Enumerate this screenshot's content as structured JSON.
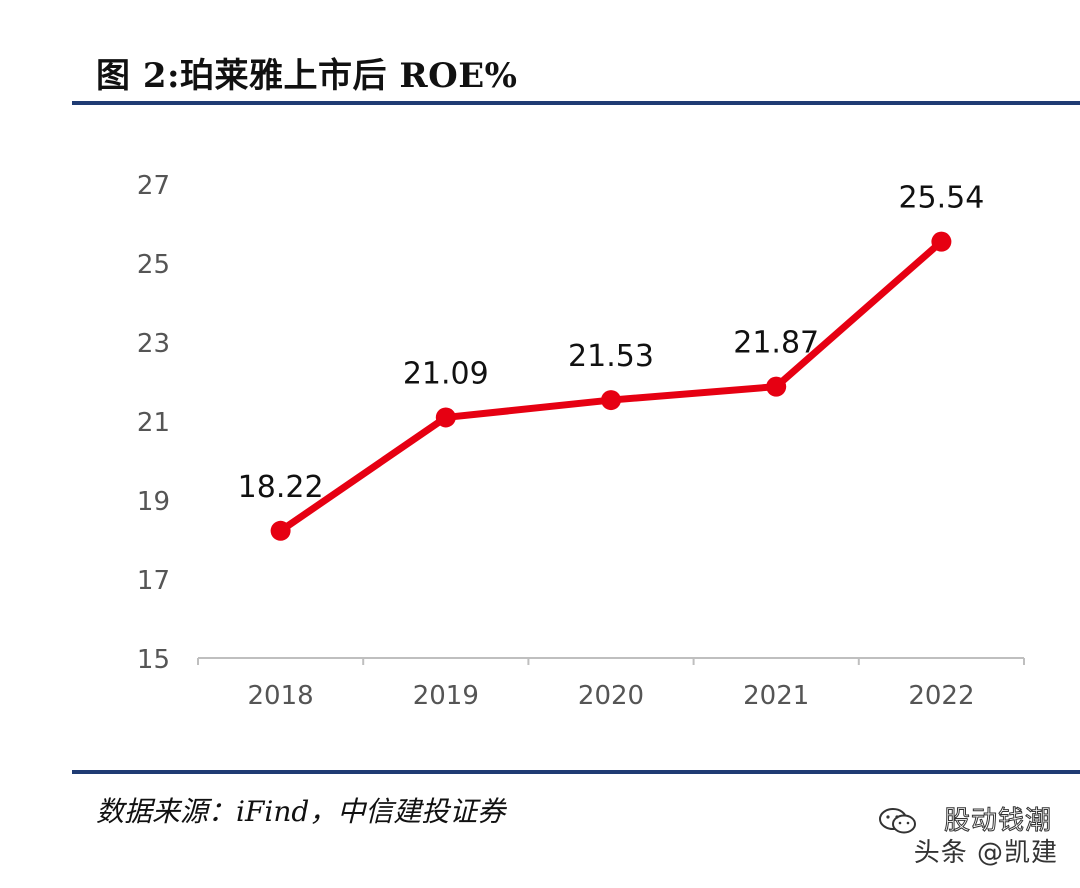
{
  "header": {
    "title": "图 2:珀莱雅上市后 ROE%"
  },
  "footer": {
    "source": "数据来源：iFind，中信建投证券"
  },
  "watermark": {
    "line1": "股动钱潮",
    "line2": "头条 @凯建"
  },
  "colors": {
    "line": "#e60012",
    "rule": "#1f3b73",
    "axis": "#bfbfbf",
    "tick_text": "#555555",
    "label_text": "#111111"
  },
  "chart_data": {
    "type": "line",
    "title": "图 2:珀莱雅上市后 ROE%",
    "categories": [
      "2018",
      "2019",
      "2020",
      "2021",
      "2022"
    ],
    "series": [
      {
        "name": "ROE%",
        "values": [
          18.22,
          21.09,
          21.53,
          21.87,
          25.54
        ],
        "labels": [
          "18.22",
          "21.09",
          "21.53",
          "21.87",
          "25.54"
        ]
      }
    ],
    "yticks": [
      "15",
      "17",
      "19",
      "21",
      "23",
      "25",
      "27"
    ],
    "ylim": [
      15,
      27
    ],
    "xlabel": "",
    "ylabel": "",
    "grid": false,
    "legend": "none"
  }
}
